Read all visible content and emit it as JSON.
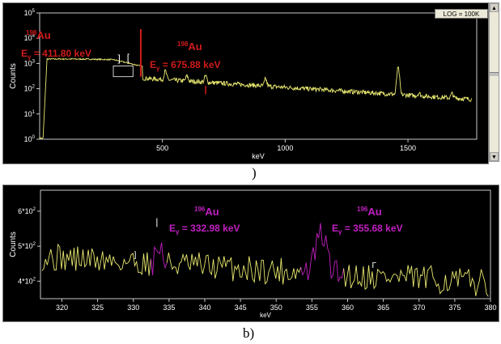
{
  "log_button": "LOG = 100K",
  "captions": {
    "a": ")",
    "b": "b)"
  },
  "chart_data": [
    {
      "type": "line",
      "panel": "a",
      "xlabel": "keV",
      "ylabel": "Counts",
      "log_y": true,
      "xlim": [
        0,
        1780
      ],
      "ylim": [
        1,
        100000
      ],
      "x_ticks": [
        500,
        1000,
        1500
      ],
      "y_ticks": [
        "10^0",
        "10^1",
        "10^2",
        "10^3",
        "10^4",
        "10^5"
      ],
      "line_color": "#e8e870",
      "peaks": [
        {
          "isotope": "198Au",
          "mass": "198",
          "element": "Au",
          "energy_label": "Eγ = 411.80 keV",
          "energy": 411.8
        },
        {
          "isotope": "198Au",
          "mass": "198",
          "element": "Au",
          "energy_label": "Eγ = 675.88 keV",
          "energy": 675.88
        }
      ],
      "annotation_color": "#d11a1a"
    },
    {
      "type": "line",
      "panel": "b",
      "xlabel": "keV",
      "ylabel": "Counts",
      "xlim": [
        317,
        380
      ],
      "ylim": [
        350,
        660
      ],
      "x_ticks": [
        320,
        325,
        330,
        335,
        340,
        345,
        350,
        355,
        360,
        365,
        370,
        375,
        380
      ],
      "y_ticks": [
        "4*10^2",
        "5*10^2",
        "6*10^2"
      ],
      "y_tick_values": [
        400,
        500,
        600
      ],
      "line_color": "#e8e870",
      "highlight_color": "#c020c0",
      "peaks": [
        {
          "isotope": "196Au",
          "mass": "196",
          "element": "Au",
          "energy_label": "Eγ = 332.98 keV",
          "energy": 332.98,
          "region": [
            332.5,
            334.8
          ]
        },
        {
          "isotope": "196Au",
          "mass": "196",
          "element": "Au",
          "energy_label": "Eγ = 355.68 keV",
          "energy": 355.68,
          "region": [
            353.5,
            359.5
          ]
        }
      ],
      "annotation_color": "#c020c0"
    }
  ]
}
